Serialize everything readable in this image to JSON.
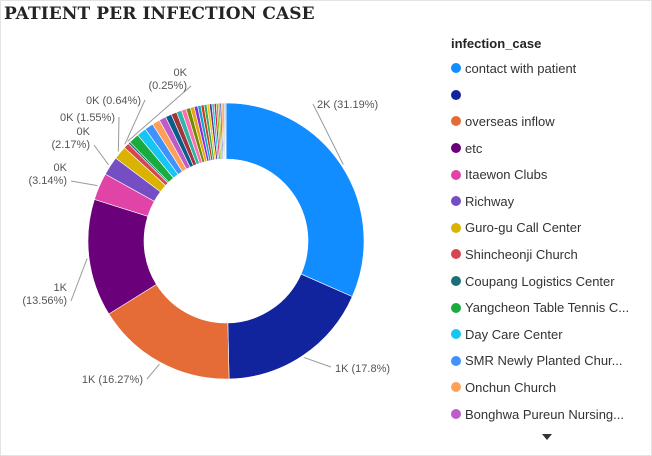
{
  "title": "PATIENT PER INFECTION CASE",
  "legend": {
    "title": "infection_case",
    "items": [
      {
        "label": "contact with patient",
        "color": "#118DFF"
      },
      {
        "label": "",
        "color": "#12239E"
      },
      {
        "label": "overseas inflow",
        "color": "#E66C37"
      },
      {
        "label": "etc",
        "color": "#6B007B"
      },
      {
        "label": "Itaewon Clubs",
        "color": "#E044A7"
      },
      {
        "label": "Richway",
        "color": "#744EC2"
      },
      {
        "label": "Guro-gu Call Center",
        "color": "#D9B300"
      },
      {
        "label": "Shincheonji Church",
        "color": "#D64550"
      },
      {
        "label": "Coupang Logistics Center",
        "color": "#197278"
      },
      {
        "label": "Yangcheon Table Tennis C...",
        "color": "#1AAB40"
      },
      {
        "label": "Day Care Center",
        "color": "#15C6F4"
      },
      {
        "label": "SMR Newly Planted Chur...",
        "color": "#4092FF"
      },
      {
        "label": "Onchun Church",
        "color": "#FFA058"
      },
      {
        "label": "Bonghwa Pureun Nursing...",
        "color": "#BE5DC9"
      }
    ]
  },
  "chart_data": {
    "type": "pie",
    "style": "donut",
    "title": "PATIENT PER INFECTION CASE",
    "legend_position": "right",
    "slices": [
      {
        "label": "contact with patient",
        "percent": 31.19,
        "value_label": "2K (31.19%)",
        "color": "#118DFF"
      },
      {
        "label": "",
        "percent": 17.8,
        "value_label": "1K (17.8%)",
        "color": "#12239E"
      },
      {
        "label": "overseas inflow",
        "percent": 16.27,
        "value_label": "1K (16.27%)",
        "color": "#E66C37"
      },
      {
        "label": "etc",
        "percent": 13.56,
        "value_label_line1": "1K",
        "value_label_line2": "(13.56%)",
        "color": "#6B007B"
      },
      {
        "label": "Itaewon Clubs",
        "percent": 3.14,
        "value_label_line1": "0K",
        "value_label_line2": "(3.14%)",
        "color": "#E044A7"
      },
      {
        "label": "Richway",
        "percent": 2.17,
        "value_label_line1": "0K",
        "value_label_line2": "(2.17%)",
        "color": "#744EC2"
      },
      {
        "label": "Guro-gu Call Center",
        "percent": 1.55,
        "value_label": "0K (1.55%)",
        "color": "#D9B300"
      },
      {
        "label": "Shincheonji Church",
        "percent": 0.64,
        "value_label": "0K (0.64%)",
        "color": "#D64550"
      },
      {
        "label": "Coupang Logistics Center",
        "percent": 0.25,
        "value_label_line1": "0K",
        "value_label_line2": "(0.25%)",
        "color": "#197278"
      },
      {
        "label": "Yangcheon Table Tennis C...",
        "percent": 1.2,
        "color": "#1AAB40"
      },
      {
        "label": "Day Care Center",
        "percent": 1.1,
        "color": "#15C6F4"
      },
      {
        "label": "SMR Newly Planted Chur...",
        "percent": 1.0,
        "color": "#4092FF"
      },
      {
        "label": "Onchun Church",
        "percent": 0.9,
        "color": "#FFA058"
      },
      {
        "label": "Bonghwa Pureun Nursing...",
        "percent": 0.8,
        "color": "#BE5DC9"
      },
      {
        "label": "",
        "percent": 0.7,
        "color": "#0B5C8A"
      },
      {
        "label": "",
        "percent": 0.65,
        "color": "#A1343C"
      },
      {
        "label": "",
        "percent": 0.6,
        "color": "#2FB5A6"
      },
      {
        "label": "",
        "percent": 0.55,
        "color": "#FF6FB0"
      },
      {
        "label": "",
        "percent": 0.5,
        "color": "#6E8C03"
      },
      {
        "label": "",
        "percent": 0.45,
        "color": "#E6A60E"
      },
      {
        "label": "",
        "percent": 0.4,
        "color": "#8A2BE2"
      },
      {
        "label": "",
        "percent": 0.38,
        "color": "#14A6C8"
      },
      {
        "label": "",
        "percent": 0.35,
        "color": "#C43E1C"
      },
      {
        "label": "",
        "percent": 0.33,
        "color": "#37A85F"
      },
      {
        "label": "",
        "percent": 0.3,
        "color": "#F2C80F"
      },
      {
        "label": "",
        "percent": 0.28,
        "color": "#5D2E8C"
      },
      {
        "label": "",
        "percent": 0.26,
        "color": "#26C7DE"
      },
      {
        "label": "",
        "percent": 0.24,
        "color": "#D62246"
      },
      {
        "label": "",
        "percent": 0.22,
        "color": "#7FBA00"
      },
      {
        "label": "",
        "percent": 0.2,
        "color": "#B1A200"
      },
      {
        "label": "",
        "percent": 0.18,
        "color": "#3F51B5"
      },
      {
        "label": "",
        "percent": 0.16,
        "color": "#FF8C42"
      },
      {
        "label": "",
        "percent": 0.14,
        "color": "#8D6E63"
      },
      {
        "label": "",
        "percent": 0.12,
        "color": "#9E9E9E"
      },
      {
        "label": "",
        "percent": 0.1,
        "color": "#444444"
      }
    ]
  }
}
